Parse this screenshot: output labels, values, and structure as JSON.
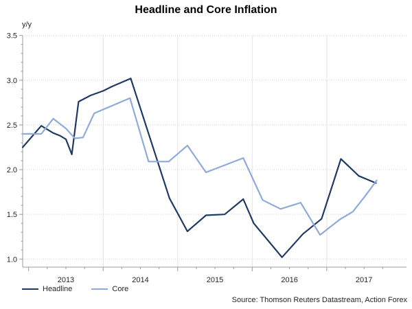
{
  "title": "Headline and Core Inflation",
  "source_note": "Source: Thomson Reuters Datastream, Action Forex",
  "legend": {
    "items": [
      {
        "label": "Headline",
        "color": "#1F3864"
      },
      {
        "label": "Core",
        "color": "#8EAADB"
      }
    ]
  },
  "chart_data": {
    "type": "line",
    "title": "Headline and Core Inflation",
    "y_unit_label": "y/y",
    "ylabel": "",
    "xlabel": "",
    "ylim": [
      0.91,
      3.5
    ],
    "xlim": [
      2012.92,
      2018.07
    ],
    "y_ticks": [
      1.0,
      1.5,
      2.0,
      2.5,
      3.0,
      3.5
    ],
    "y_minor_tick_step": 0.1,
    "x_year_labels": [
      "2013",
      "2014",
      "2015",
      "2016",
      "2017"
    ],
    "x_major_ticks": [
      2013,
      2014,
      2015,
      2016,
      2017
    ],
    "x_minor_tick_step": 0.25,
    "grid": {
      "horizontal": "dotted",
      "vertical": "solid",
      "color": "#d9d9d9"
    },
    "axis_color": "#9b9b9b",
    "tick_label_color": "#262626",
    "legend_position": "bottom-left",
    "series": [
      {
        "name": "Headline",
        "color": "#1F3864",
        "points": [
          [
            2012.92,
            2.25
          ],
          [
            2013.17,
            2.49
          ],
          [
            2013.33,
            2.41
          ],
          [
            2013.42,
            2.38
          ],
          [
            2013.5,
            2.34
          ],
          [
            2013.58,
            2.17
          ],
          [
            2013.67,
            2.76
          ],
          [
            2013.83,
            2.83
          ],
          [
            2014.0,
            2.88
          ],
          [
            2014.12,
            2.93
          ],
          [
            2014.37,
            3.02
          ],
          [
            2014.89,
            1.68
          ],
          [
            2015.13,
            1.31
          ],
          [
            2015.38,
            1.49
          ],
          [
            2015.63,
            1.5
          ],
          [
            2015.88,
            1.67
          ],
          [
            2016.02,
            1.4
          ],
          [
            2016.4,
            1.02
          ],
          [
            2016.68,
            1.28
          ],
          [
            2016.93,
            1.45
          ],
          [
            2017.19,
            2.12
          ],
          [
            2017.43,
            1.93
          ],
          [
            2017.66,
            1.85
          ]
        ]
      },
      {
        "name": "Core",
        "color": "#8EAADB",
        "points": [
          [
            2012.92,
            2.4
          ],
          [
            2013.17,
            2.4
          ],
          [
            2013.33,
            2.57
          ],
          [
            2013.5,
            2.46
          ],
          [
            2013.62,
            2.35
          ],
          [
            2013.73,
            2.36
          ],
          [
            2013.88,
            2.63
          ],
          [
            2014.36,
            2.8
          ],
          [
            2014.61,
            2.09
          ],
          [
            2014.88,
            2.09
          ],
          [
            2015.13,
            2.27
          ],
          [
            2015.38,
            1.97
          ],
          [
            2015.88,
            2.13
          ],
          [
            2016.14,
            1.66
          ],
          [
            2016.38,
            1.56
          ],
          [
            2016.65,
            1.63
          ],
          [
            2016.91,
            1.27
          ],
          [
            2017.17,
            1.44
          ],
          [
            2017.35,
            1.53
          ],
          [
            2017.52,
            1.71
          ],
          [
            2017.67,
            1.88
          ]
        ]
      }
    ]
  }
}
